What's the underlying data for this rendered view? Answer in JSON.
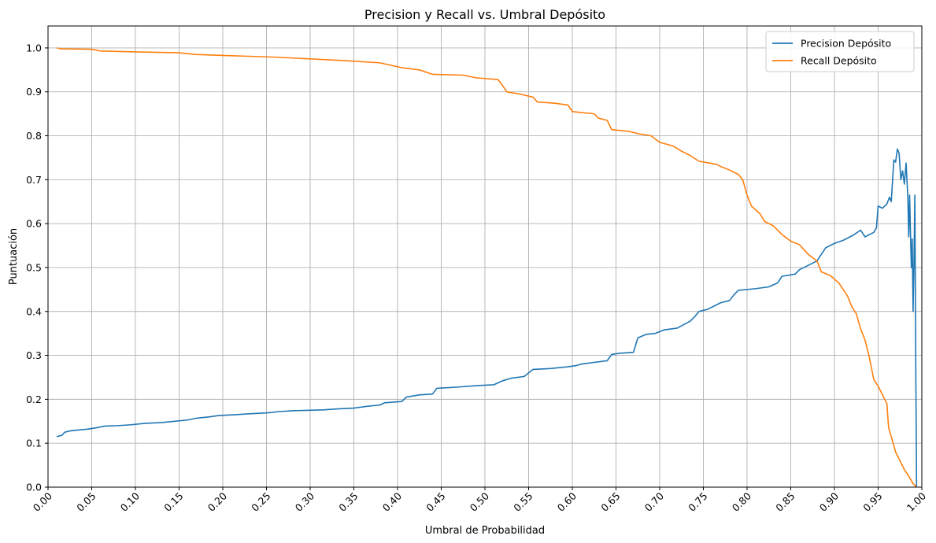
{
  "chart_data": {
    "type": "line",
    "title": "Precision y Recall vs. Umbral Depósito",
    "xlabel": "Umbral de Probabilidad",
    "ylabel": "Puntuación",
    "xlim": [
      0,
      1
    ],
    "ylim": [
      0,
      1.05
    ],
    "grid": true,
    "legend_position": "top-right",
    "x_ticks": [
      "0.00",
      "0.05",
      "0.10",
      "0.15",
      "0.20",
      "0.25",
      "0.30",
      "0.35",
      "0.40",
      "0.45",
      "0.50",
      "0.55",
      "0.60",
      "0.65",
      "0.70",
      "0.75",
      "0.80",
      "0.85",
      "0.90",
      "0.95",
      "1.00"
    ],
    "y_ticks": [
      "0.0",
      "0.1",
      "0.2",
      "0.3",
      "0.4",
      "0.5",
      "0.6",
      "0.7",
      "0.8",
      "0.9",
      "1.0"
    ],
    "series": [
      {
        "name": "Precision Depósito",
        "color": "#1f77b4",
        "points": [
          [
            0.01,
            0.115
          ],
          [
            0.016,
            0.118
          ],
          [
            0.019,
            0.125
          ],
          [
            0.025,
            0.128
          ],
          [
            0.035,
            0.13
          ],
          [
            0.045,
            0.132
          ],
          [
            0.055,
            0.135
          ],
          [
            0.065,
            0.139
          ],
          [
            0.08,
            0.14
          ],
          [
            0.095,
            0.142
          ],
          [
            0.11,
            0.145
          ],
          [
            0.13,
            0.147
          ],
          [
            0.145,
            0.15
          ],
          [
            0.16,
            0.153
          ],
          [
            0.17,
            0.157
          ],
          [
            0.185,
            0.16
          ],
          [
            0.195,
            0.163
          ],
          [
            0.215,
            0.165
          ],
          [
            0.23,
            0.167
          ],
          [
            0.25,
            0.169
          ],
          [
            0.265,
            0.172
          ],
          [
            0.28,
            0.174
          ],
          [
            0.3,
            0.175
          ],
          [
            0.315,
            0.176
          ],
          [
            0.33,
            0.178
          ],
          [
            0.35,
            0.18
          ],
          [
            0.365,
            0.184
          ],
          [
            0.38,
            0.187
          ],
          [
            0.385,
            0.192
          ],
          [
            0.405,
            0.195
          ],
          [
            0.41,
            0.205
          ],
          [
            0.425,
            0.21
          ],
          [
            0.44,
            0.212
          ],
          [
            0.445,
            0.225
          ],
          [
            0.47,
            0.228
          ],
          [
            0.49,
            0.231
          ],
          [
            0.51,
            0.233
          ],
          [
            0.52,
            0.242
          ],
          [
            0.53,
            0.248
          ],
          [
            0.545,
            0.252
          ],
          [
            0.555,
            0.268
          ],
          [
            0.575,
            0.27
          ],
          [
            0.595,
            0.274
          ],
          [
            0.605,
            0.277
          ],
          [
            0.61,
            0.28
          ],
          [
            0.625,
            0.284
          ],
          [
            0.64,
            0.288
          ],
          [
            0.645,
            0.302
          ],
          [
            0.655,
            0.305
          ],
          [
            0.67,
            0.307
          ],
          [
            0.675,
            0.34
          ],
          [
            0.685,
            0.348
          ],
          [
            0.695,
            0.35
          ],
          [
            0.705,
            0.358
          ],
          [
            0.72,
            0.362
          ],
          [
            0.735,
            0.378
          ],
          [
            0.74,
            0.388
          ],
          [
            0.745,
            0.4
          ],
          [
            0.755,
            0.405
          ],
          [
            0.765,
            0.415
          ],
          [
            0.77,
            0.42
          ],
          [
            0.78,
            0.425
          ],
          [
            0.785,
            0.438
          ],
          [
            0.79,
            0.448
          ],
          [
            0.8,
            0.45
          ],
          [
            0.81,
            0.452
          ],
          [
            0.825,
            0.456
          ],
          [
            0.835,
            0.465
          ],
          [
            0.84,
            0.48
          ],
          [
            0.855,
            0.485
          ],
          [
            0.86,
            0.495
          ],
          [
            0.87,
            0.505
          ],
          [
            0.88,
            0.515
          ],
          [
            0.885,
            0.53
          ],
          [
            0.89,
            0.545
          ],
          [
            0.9,
            0.555
          ],
          [
            0.91,
            0.562
          ],
          [
            0.92,
            0.572
          ],
          [
            0.93,
            0.585
          ],
          [
            0.935,
            0.57
          ],
          [
            0.945,
            0.58
          ],
          [
            0.948,
            0.59
          ],
          [
            0.95,
            0.64
          ],
          [
            0.955,
            0.635
          ],
          [
            0.96,
            0.645
          ],
          [
            0.963,
            0.66
          ],
          [
            0.965,
            0.65
          ],
          [
            0.968,
            0.745
          ],
          [
            0.97,
            0.74
          ],
          [
            0.972,
            0.77
          ],
          [
            0.974,
            0.76
          ],
          [
            0.976,
            0.7
          ],
          [
            0.978,
            0.72
          ],
          [
            0.98,
            0.69
          ],
          [
            0.982,
            0.738
          ],
          [
            0.984,
            0.66
          ],
          [
            0.985,
            0.57
          ],
          [
            0.986,
            0.665
          ],
          [
            0.987,
            0.58
          ],
          [
            0.988,
            0.5
          ],
          [
            0.989,
            0.565
          ],
          [
            0.99,
            0.4
          ],
          [
            0.991,
            0.51
          ],
          [
            0.992,
            0.665
          ],
          [
            0.993,
            0.3
          ],
          [
            0.994,
            0.0
          ]
        ]
      },
      {
        "name": "Recall Depósito",
        "color": "#ff7f0e",
        "points": [
          [
            0.01,
            1.0
          ],
          [
            0.015,
            0.998
          ],
          [
            0.05,
            0.997
          ],
          [
            0.06,
            0.993
          ],
          [
            0.1,
            0.991
          ],
          [
            0.15,
            0.989
          ],
          [
            0.17,
            0.985
          ],
          [
            0.2,
            0.983
          ],
          [
            0.23,
            0.981
          ],
          [
            0.26,
            0.979
          ],
          [
            0.3,
            0.975
          ],
          [
            0.34,
            0.971
          ],
          [
            0.38,
            0.966
          ],
          [
            0.405,
            0.955
          ],
          [
            0.425,
            0.95
          ],
          [
            0.44,
            0.94
          ],
          [
            0.475,
            0.938
          ],
          [
            0.49,
            0.932
          ],
          [
            0.515,
            0.928
          ],
          [
            0.52,
            0.915
          ],
          [
            0.525,
            0.9
          ],
          [
            0.54,
            0.895
          ],
          [
            0.555,
            0.888
          ],
          [
            0.56,
            0.877
          ],
          [
            0.58,
            0.874
          ],
          [
            0.595,
            0.87
          ],
          [
            0.6,
            0.855
          ],
          [
            0.625,
            0.85
          ],
          [
            0.63,
            0.84
          ],
          [
            0.64,
            0.835
          ],
          [
            0.645,
            0.814
          ],
          [
            0.665,
            0.81
          ],
          [
            0.675,
            0.805
          ],
          [
            0.69,
            0.8
          ],
          [
            0.7,
            0.785
          ],
          [
            0.715,
            0.777
          ],
          [
            0.725,
            0.765
          ],
          [
            0.735,
            0.755
          ],
          [
            0.745,
            0.742
          ],
          [
            0.765,
            0.735
          ],
          [
            0.77,
            0.73
          ],
          [
            0.78,
            0.722
          ],
          [
            0.79,
            0.712
          ],
          [
            0.795,
            0.7
          ],
          [
            0.8,
            0.665
          ],
          [
            0.805,
            0.64
          ],
          [
            0.815,
            0.622
          ],
          [
            0.82,
            0.605
          ],
          [
            0.83,
            0.595
          ],
          [
            0.84,
            0.575
          ],
          [
            0.85,
            0.56
          ],
          [
            0.86,
            0.552
          ],
          [
            0.87,
            0.53
          ],
          [
            0.88,
            0.515
          ],
          [
            0.885,
            0.49
          ],
          [
            0.895,
            0.482
          ],
          [
            0.905,
            0.465
          ],
          [
            0.915,
            0.435
          ],
          [
            0.92,
            0.41
          ],
          [
            0.925,
            0.395
          ],
          [
            0.93,
            0.36
          ],
          [
            0.935,
            0.335
          ],
          [
            0.94,
            0.295
          ],
          [
            0.945,
            0.245
          ],
          [
            0.95,
            0.23
          ],
          [
            0.955,
            0.21
          ],
          [
            0.96,
            0.19
          ],
          [
            0.962,
            0.135
          ],
          [
            0.965,
            0.115
          ],
          [
            0.97,
            0.08
          ],
          [
            0.975,
            0.06
          ],
          [
            0.98,
            0.04
          ],
          [
            0.985,
            0.025
          ],
          [
            0.99,
            0.008
          ],
          [
            0.994,
            0.0
          ]
        ]
      }
    ]
  }
}
